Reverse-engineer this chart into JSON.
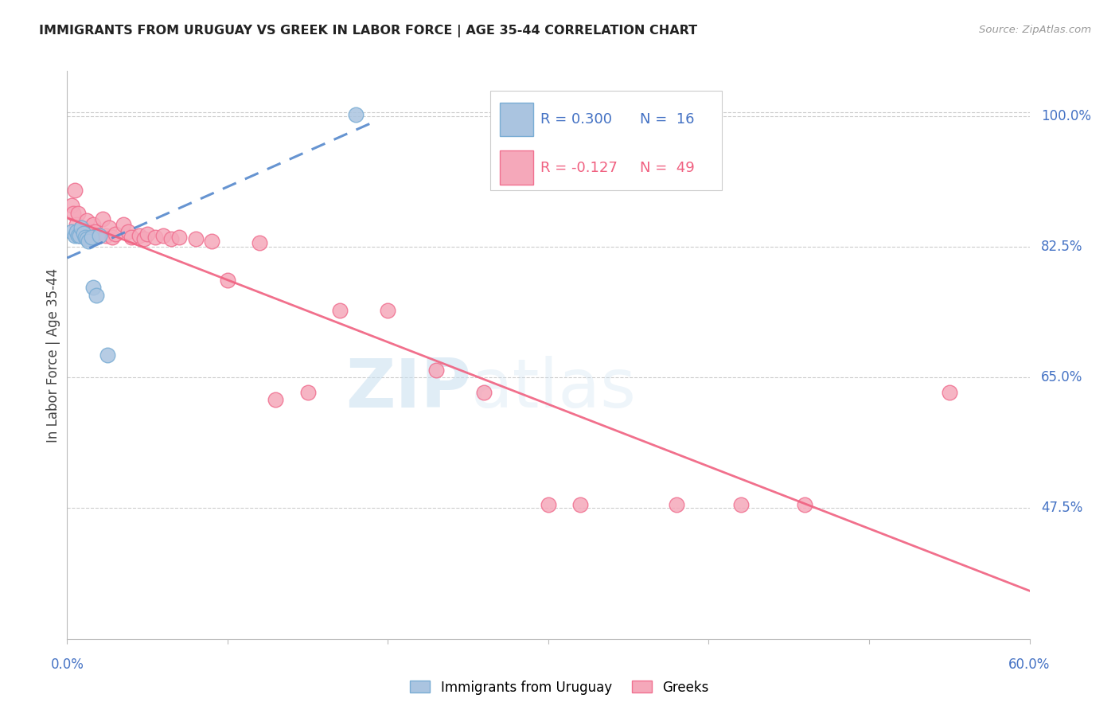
{
  "title": "IMMIGRANTS FROM URUGUAY VS GREEK IN LABOR FORCE | AGE 35-44 CORRELATION CHART",
  "source": "Source: ZipAtlas.com",
  "ylabel": "In Labor Force | Age 35-44",
  "right_yticks": [
    0.475,
    0.65,
    0.825,
    1.0
  ],
  "right_yticklabels": [
    "47.5%",
    "65.0%",
    "82.5%",
    "100.0%"
  ],
  "xlim": [
    0.0,
    0.6
  ],
  "ylim": [
    0.3,
    1.06
  ],
  "legend_r1": "R = 0.300",
  "legend_n1": "N =  16",
  "legend_r2": "R = -0.127",
  "legend_n2": "N =  49",
  "uruguay_color": "#aac4e0",
  "greek_color": "#f5a8ba",
  "uruguay_edge": "#7aadd4",
  "greek_edge": "#f07090",
  "trend_uruguay_color": "#5588cc",
  "trend_greek_color": "#f06080",
  "watermark_zip": "ZIP",
  "watermark_atlas": "atlas",
  "uruguay_x": [
    0.003,
    0.005,
    0.006,
    0.007,
    0.008,
    0.009,
    0.01,
    0.011,
    0.012,
    0.013,
    0.015,
    0.016,
    0.018,
    0.02,
    0.025,
    0.18
  ],
  "uruguay_y": [
    0.845,
    0.84,
    0.845,
    0.84,
    0.84,
    0.85,
    0.843,
    0.838,
    0.836,
    0.832,
    0.838,
    0.77,
    0.76,
    0.84,
    0.68,
    1.002
  ],
  "greek_x": [
    0.003,
    0.004,
    0.005,
    0.006,
    0.007,
    0.008,
    0.009,
    0.01,
    0.011,
    0.012,
    0.013,
    0.014,
    0.015,
    0.016,
    0.017,
    0.018,
    0.019,
    0.02,
    0.022,
    0.024,
    0.026,
    0.028,
    0.03,
    0.035,
    0.038,
    0.04,
    0.045,
    0.048,
    0.05,
    0.055,
    0.06,
    0.065,
    0.07,
    0.08,
    0.09,
    0.1,
    0.12,
    0.13,
    0.15,
    0.17,
    0.2,
    0.23,
    0.26,
    0.3,
    0.32,
    0.38,
    0.42,
    0.46,
    0.55
  ],
  "greek_y": [
    0.88,
    0.87,
    0.9,
    0.855,
    0.87,
    0.84,
    0.85,
    0.84,
    0.845,
    0.86,
    0.84,
    0.845,
    0.84,
    0.855,
    0.845,
    0.84,
    0.84,
    0.84,
    0.862,
    0.84,
    0.85,
    0.838,
    0.842,
    0.855,
    0.845,
    0.838,
    0.84,
    0.835,
    0.842,
    0.838,
    0.84,
    0.836,
    0.838,
    0.835,
    0.832,
    0.78,
    0.83,
    0.62,
    0.63,
    0.74,
    0.74,
    0.66,
    0.63,
    0.48,
    0.48,
    0.48,
    0.48,
    0.48,
    0.63
  ]
}
